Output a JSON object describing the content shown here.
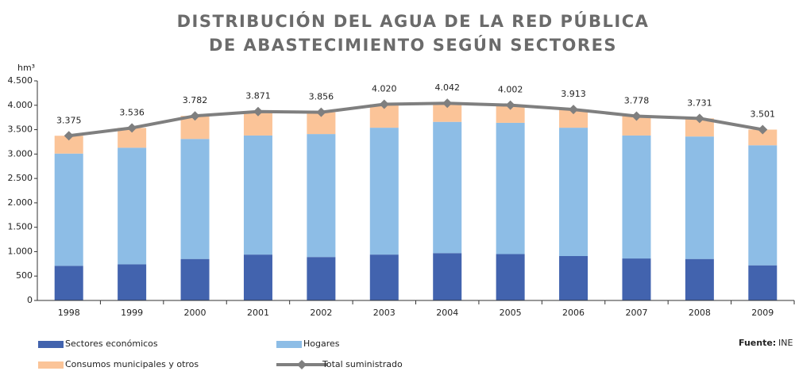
{
  "chart_data": {
    "type": "bar",
    "stacked": true,
    "title": [
      "DISTRIBUCIÓN DEL AGUA DE LA RED PÚBLICA",
      "DE ABASTECIMIENTO SEGÚN SECTORES"
    ],
    "y_unit": "hm³",
    "source_label": "Fuente:",
    "source": "INE",
    "categories": [
      "1998",
      "1999",
      "2000",
      "2001",
      "2002",
      "2003",
      "2004",
      "2005",
      "2006",
      "2007",
      "2008",
      "2009"
    ],
    "series": [
      {
        "name": "Sectores económicos",
        "color": "#4263ae",
        "values": [
          710,
          740,
          850,
          940,
          890,
          940,
          970,
          950,
          910,
          860,
          850,
          720
        ]
      },
      {
        "name": "Hogares",
        "color": "#8dbde6",
        "values": [
          2300,
          2390,
          2460,
          2440,
          2520,
          2600,
          2690,
          2690,
          2630,
          2520,
          2510,
          2460
        ]
      },
      {
        "name": "Consumos municipales y otros",
        "color": "#fbc498",
        "values": [
          365,
          406,
          472,
          491,
          446,
          480,
          382,
          362,
          373,
          398,
          371,
          321
        ]
      },
      {
        "name": "Total suministrado",
        "color": "#7f7f7f",
        "type": "line",
        "values": [
          3375,
          3536,
          3782,
          3871,
          3856,
          4020,
          4042,
          4002,
          3913,
          3778,
          3731,
          3501
        ],
        "value_labels": [
          "3.375",
          "3.536",
          "3.782",
          "3.871",
          "3.856",
          "4.020",
          "4.042",
          "4.002",
          "3.913",
          "3.778",
          "3.731",
          "3.501"
        ]
      }
    ],
    "ylim": [
      0,
      4500
    ],
    "yticks": [
      0,
      {
        "value": 500,
        "label": "500"
      },
      {
        "value": 1000,
        "label": "1.000"
      },
      {
        "value": 1500,
        "label": "1.500"
      },
      {
        "value": 2000,
        "label": "2.000"
      },
      {
        "value": 2500,
        "label": "2.500"
      },
      {
        "value": 3000,
        "label": "3.000"
      },
      {
        "value": 3500,
        "label": "3.500"
      },
      {
        "value": 4000,
        "label": "4.000"
      },
      {
        "value": 4500,
        "label": "4.500"
      }
    ]
  }
}
